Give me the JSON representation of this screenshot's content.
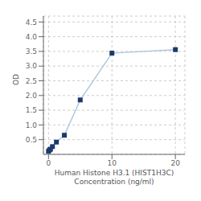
{
  "chart_data": {
    "type": "line",
    "x": [
      0,
      0.156,
      0.313,
      0.625,
      1.25,
      2.5,
      5,
      10,
      20
    ],
    "values": [
      0.107,
      0.148,
      0.175,
      0.264,
      0.417,
      0.65,
      1.85,
      3.44,
      3.56
    ],
    "color": "#adc8df",
    "colors": [
      "#1b3a6b",
      "#1b3a6b",
      "#1b3a6b",
      "#1b3a6b",
      "#1b3a6b",
      "#1b3a6b",
      "#1b3a6b",
      "#1b3a6b",
      "#1b3a6b"
    ],
    "marker": "square",
    "x_label": "Human Histone H3.1 (HIST1H3C)\nConcentration (ng/ml)",
    "y_label": "OD",
    "xlim": [
      -0.8,
      21.5
    ],
    "ylim": [
      0,
      4.7
    ],
    "xticks": [
      0,
      10,
      20
    ],
    "yticks": [
      0.5,
      {
        "value": 1,
        "label": "1.0"
      },
      1.5,
      {
        "value": 2,
        "label": "2.0"
      },
      2.5,
      {
        "value": 3,
        "label": "3.0"
      },
      3.5,
      {
        "value": 4,
        "label": "4.0"
      },
      4.5
    ],
    "grid": true
  }
}
